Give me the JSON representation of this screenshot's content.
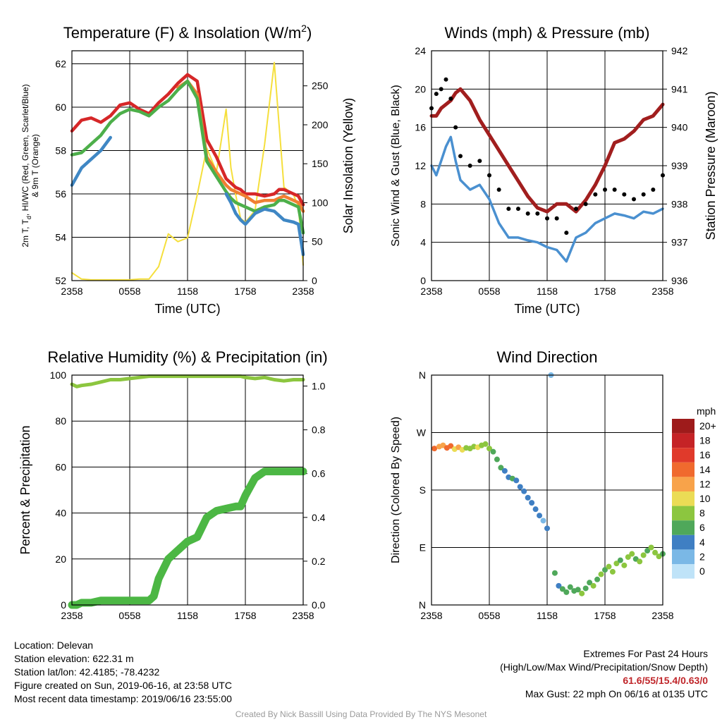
{
  "chart_data": [
    {
      "type": "line",
      "title": "Temperature (F) & Insolation (W/m²)",
      "xlabel": "Time (UTC)",
      "ylabel": "2m T, Tₑ, HI/WC (Red, Green, Scarlet/Blue) & 9m T (Orange)",
      "ylabel_line1": "2m T, T",
      "ylabel_sub": "d",
      "ylabel_line1_rest": ", HI/WC (Red, Green, Scarlet/Blue)",
      "ylabel_line2": "& 9m T (Orange)",
      "y2label": "Solar Insolation (Yellow)",
      "x_ticks": [
        "2358",
        "0558",
        "1158",
        "1758",
        "2358"
      ],
      "ylim": [
        52,
        62.6
      ],
      "y_ticks": [
        52,
        54,
        56,
        58,
        60,
        62
      ],
      "y2lim": [
        0,
        295
      ],
      "y2_ticks": [
        0,
        50,
        100,
        150,
        200,
        250
      ],
      "x": [
        0,
        1,
        2,
        3,
        4,
        5,
        6,
        7,
        8,
        9,
        10,
        11,
        12,
        13,
        14,
        15,
        16,
        16.5,
        17,
        17.5,
        18,
        19,
        20,
        21,
        21.5,
        22,
        23,
        23.5,
        24
      ],
      "series": [
        {
          "name": "2m T",
          "color": "#d62728",
          "axis": "left",
          "values": [
            58.9,
            59.4,
            59.5,
            59.3,
            59.6,
            60.1,
            60.2,
            59.9,
            59.7,
            60.2,
            60.6,
            61.1,
            61.5,
            61.2,
            58.5,
            57.7,
            56.7,
            56.5,
            56.3,
            56.2,
            56.0,
            56.0,
            55.9,
            56.0,
            56.2,
            56.2,
            56.0,
            55.9,
            55.5
          ]
        },
        {
          "name": "9m T",
          "color": "#f07f32",
          "axis": "left",
          "values": [
            null,
            null,
            null,
            null,
            null,
            null,
            null,
            null,
            null,
            null,
            null,
            60.9,
            61.2,
            60.6,
            57.7,
            57.0,
            56.4,
            56.2,
            56.1,
            56.0,
            55.9,
            55.6,
            55.7,
            55.7,
            55.8,
            55.9,
            55.7,
            55.6,
            55.2
          ]
        },
        {
          "name": "T_d",
          "color": "#4daf4a",
          "axis": "left",
          "values": [
            57.8,
            57.9,
            58.3,
            58.7,
            59.3,
            59.7,
            59.9,
            59.8,
            59.6,
            60.0,
            60.3,
            60.8,
            61.2,
            60.4,
            57.5,
            56.8,
            56.1,
            55.8,
            55.6,
            55.5,
            55.4,
            55.2,
            55.4,
            55.5,
            55.7,
            55.7,
            55.5,
            55.4,
            54.2
          ]
        },
        {
          "name": "HI/WC",
          "color": "#3f87c4",
          "axis": "left",
          "values": [
            56.4,
            57.2,
            57.6,
            58.0,
            58.6,
            null,
            null,
            null,
            null,
            null,
            null,
            null,
            null,
            null,
            null,
            null,
            56.0,
            55.6,
            55.1,
            54.8,
            54.6,
            55.1,
            55.3,
            55.2,
            55.0,
            54.8,
            54.7,
            54.6,
            53.2
          ]
        },
        {
          "name": "Solar Insolation",
          "color": "#f5df3c",
          "axis": "right",
          "values": [
            10,
            2,
            1,
            1,
            1,
            1,
            1,
            2,
            2,
            18,
            60,
            50,
            55,
            110,
            170,
            140,
            220,
            145,
            110,
            80,
            75,
            90,
            175,
            280,
            200,
            120,
            110,
            95,
            20
          ]
        }
      ]
    },
    {
      "type": "line",
      "title": "Winds (mph) & Pressure (mb)",
      "xlabel": "Time (UTC)",
      "ylabel": "Sonic Wind & Gust (Blue, Black)",
      "y2label": "Station Pressure (Maroon)",
      "x_ticks": [
        "2358",
        "0558",
        "1158",
        "1758",
        "2358"
      ],
      "ylim": [
        0,
        24
      ],
      "y_ticks": [
        0,
        4,
        8,
        12,
        16,
        20,
        24
      ],
      "y2lim": [
        936,
        942
      ],
      "y2_ticks": [
        936,
        937,
        938,
        939,
        940,
        941,
        942
      ],
      "x": [
        0,
        0.5,
        1,
        1.5,
        2,
        2.5,
        3,
        4,
        5,
        6,
        7,
        8,
        9,
        10,
        11,
        12,
        13,
        14,
        15,
        16,
        17,
        18,
        19,
        20,
        21,
        22,
        23,
        24
      ],
      "series": [
        {
          "name": "Sonic Wind",
          "color": "#4a90d0",
          "axis": "left",
          "values": [
            12.0,
            11.0,
            12.5,
            14.0,
            15.0,
            12.5,
            10.5,
            9.5,
            10.0,
            8.5,
            6.0,
            4.5,
            4.5,
            4.2,
            4.0,
            3.5,
            3.2,
            2.0,
            4.5,
            5.0,
            6.0,
            6.5,
            7.0,
            6.8,
            6.5,
            7.2,
            7.0,
            7.5
          ]
        },
        {
          "name": "Gust",
          "color": "#000000",
          "axis": "left",
          "values": [
            18.0,
            19.5,
            20.0,
            21.0,
            19.0,
            16.0,
            13.0,
            12.0,
            12.5,
            11.0,
            9.5,
            7.5,
            7.5,
            7.0,
            7.0,
            6.5,
            6.5,
            5.0,
            7.5,
            8.0,
            9.0,
            9.5,
            9.5,
            9.0,
            8.5,
            9.0,
            9.5,
            11.0
          ]
        },
        {
          "name": "Station Pressure",
          "color": "#a11e1e",
          "axis": "right",
          "values": [
            940.3,
            940.3,
            940.5,
            940.6,
            940.7,
            940.9,
            941.0,
            940.7,
            940.2,
            939.8,
            939.4,
            939.0,
            938.6,
            938.2,
            937.9,
            937.8,
            938.0,
            938.0,
            937.8,
            938.1,
            938.5,
            939.0,
            939.6,
            939.7,
            939.9,
            940.2,
            940.3,
            940.6
          ]
        }
      ]
    },
    {
      "type": "line",
      "title": "Relative Humidity (%) & Precipitation (in)",
      "xlabel": "",
      "ylabel": "Percent & Precipitation",
      "y2label": "",
      "x_ticks": [
        "2358",
        "0558",
        "1158",
        "1758",
        "2358"
      ],
      "ylim": [
        0,
        100
      ],
      "y_ticks": [
        0,
        20,
        40,
        60,
        80,
        100
      ],
      "y2lim": [
        0,
        1.05
      ],
      "y2_ticks": [
        "0.0",
        "0.2",
        "0.4",
        "0.6",
        "0.8",
        "1.0"
      ],
      "x": [
        0,
        0.5,
        1,
        2,
        3,
        4,
        5,
        6,
        7,
        8,
        8.5,
        9,
        10,
        11,
        12,
        13,
        14,
        15,
        16,
        17,
        17.5,
        18,
        19,
        20,
        21,
        22,
        23,
        24
      ],
      "series": [
        {
          "name": "Relative Humidity",
          "color": "#8cc63f",
          "axis": "left",
          "values": [
            96,
            95,
            95.5,
            96,
            97,
            98,
            98,
            98.5,
            99,
            99.5,
            99.5,
            99.5,
            99.5,
            99.5,
            99.5,
            99.5,
            99.5,
            99.5,
            99.5,
            99.5,
            99.5,
            99,
            98.5,
            99,
            98,
            97.5,
            98,
            98
          ]
        },
        {
          "name": "Precipitation",
          "color": "#4cb744",
          "axis": "right",
          "values": [
            0,
            0,
            0.01,
            0.01,
            0.02,
            0.02,
            0.02,
            0.02,
            0.02,
            0.02,
            0.04,
            0.12,
            0.21,
            0.25,
            0.29,
            0.31,
            0.4,
            0.43,
            0.44,
            0.45,
            0.45,
            0.5,
            0.58,
            0.61,
            0.61,
            0.61,
            0.61,
            0.61
          ]
        }
      ]
    },
    {
      "type": "scatter",
      "title": "Wind Direction",
      "xlabel": "",
      "ylabel": "Direction (Colored By Speed)",
      "x_ticks": [
        "2358",
        "0558",
        "1158",
        "1758",
        "2358"
      ],
      "y_ticks": [
        "N",
        "E",
        "S",
        "W",
        "N"
      ],
      "ylim": [
        0,
        360
      ],
      "legend": {
        "title": "mph",
        "labels": [
          "20+",
          "18",
          "16",
          "14",
          "12",
          "10",
          "8",
          "6",
          "4",
          "2",
          "0"
        ],
        "colors": [
          "#9e1b1b",
          "#c52326",
          "#e03a2b",
          "#f06a2e",
          "#f8a34a",
          "#ebdc55",
          "#8cc63f",
          "#4fa85a",
          "#3f7fc3",
          "#7ab8e6",
          "#bfe3f8"
        ],
        "placement": "right"
      },
      "points_x": [
        0.3,
        0.8,
        1.2,
        1.6,
        2.0,
        2.4,
        2.8,
        3.2,
        3.6,
        4.0,
        4.4,
        4.8,
        5.2,
        5.6,
        6.0,
        6.4,
        6.8,
        7.2,
        7.6,
        8.0,
        8.4,
        8.8,
        9.2,
        9.6,
        10.0,
        10.4,
        10.8,
        11.2,
        11.6,
        12.0,
        12.4,
        12.8,
        13.2,
        13.6,
        14.0,
        14.4,
        14.8,
        15.2,
        15.6,
        16.0,
        16.4,
        16.8,
        17.2,
        17.6,
        18.0,
        18.4,
        18.8,
        19.2,
        19.6,
        20.0,
        20.4,
        20.8,
        21.2,
        21.6,
        22.0,
        22.4,
        22.8,
        23.2,
        23.6,
        24.0
      ],
      "points_y": [
        245,
        248,
        250,
        246,
        249,
        244,
        247,
        243,
        246,
        245,
        248,
        247,
        250,
        252,
        245,
        240,
        228,
        215,
        210,
        200,
        198,
        195,
        185,
        178,
        168,
        160,
        150,
        140,
        132,
        120,
        360,
        50,
        30,
        25,
        20,
        28,
        22,
        24,
        18,
        26,
        35,
        30,
        40,
        48,
        55,
        60,
        52,
        65,
        70,
        62,
        75,
        80,
        72,
        68,
        78,
        85,
        90,
        82,
        76,
        80
      ],
      "points_speed": [
        13,
        12,
        11,
        14,
        13,
        10,
        12,
        9,
        8,
        7,
        8,
        9,
        8,
        7,
        8,
        6,
        5,
        5,
        4,
        4,
        5,
        4,
        3,
        4,
        4,
        3,
        4,
        3,
        2,
        3,
        2,
        5,
        4,
        5,
        6,
        5,
        6,
        5,
        7,
        6,
        6,
        7,
        6,
        7,
        6,
        7,
        8,
        7,
        6,
        7,
        8,
        7,
        6,
        8,
        7,
        6,
        7,
        8,
        7,
        6
      ]
    }
  ],
  "info_left": {
    "location": "Location: Delevan",
    "elevation": "Station elevation: 622.31 m",
    "latlon": "Station lat/lon: 42.4185; -78.4232",
    "created": "Figure created on Sun, 2019-06-16, at 23:58 UTC",
    "recent": "Most recent data timestamp: 2019/06/16 23:55:00"
  },
  "info_right": {
    "title": "Extremes For Past 24 Hours",
    "subtitle": "(High/Low/Max Wind/Precipitation/Snow Depth)",
    "values": "61.6/55/15.4/0.63/0",
    "max_gust": "Max Gust: 22 mph On 06/16 at 0135 UTC"
  },
  "credit": "Created By Nick Bassill Using Data Provided By The NYS Mesonet",
  "colors": {
    "accent_red": "#c0262a",
    "credit_gray": "#9a9a9a"
  }
}
